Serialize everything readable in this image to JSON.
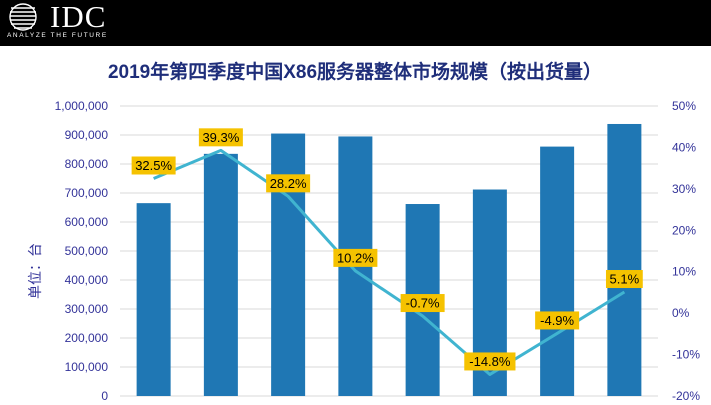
{
  "brand": {
    "logo_text": "IDC",
    "tagline": "ANALYZE THE FUTURE"
  },
  "colors": {
    "header_bg": "#000000",
    "bar": "#1f77b4",
    "line": "#40b4d0",
    "label_bg": "#f5c200",
    "axis_text": "#333399",
    "grid": "#d9d9d9"
  },
  "chart_data": {
    "type": "bar",
    "title": "2019年第四季度中国X86服务器整体市场规模（按出货量）",
    "ylabel": "单位：台",
    "ylim": [
      0,
      1000000
    ],
    "y2lim": [
      -20,
      50
    ],
    "y_ticks": [
      "1,000,000",
      "900,000",
      "800,000",
      "700,000",
      "600,000",
      "500,000",
      "400,000",
      "300,000",
      "200,000",
      "100,000",
      "0"
    ],
    "y2_ticks": [
      "50%",
      "40%",
      "30%",
      "20%",
      "10%",
      "0%",
      "-10%",
      "-20%"
    ],
    "grid": true,
    "bars": {
      "values": [
        665000,
        835000,
        905000,
        895000,
        662000,
        712000,
        860000,
        938000
      ]
    },
    "growth": {
      "values": [
        32.5,
        39.3,
        28.2,
        10.2,
        -0.7,
        -14.8,
        -4.9,
        5.1
      ],
      "labels": [
        "32.5%",
        "39.3%",
        "28.2%",
        "10.2%",
        "-0.7%",
        "-14.8%",
        "-4.9%",
        "5.1%"
      ]
    }
  }
}
